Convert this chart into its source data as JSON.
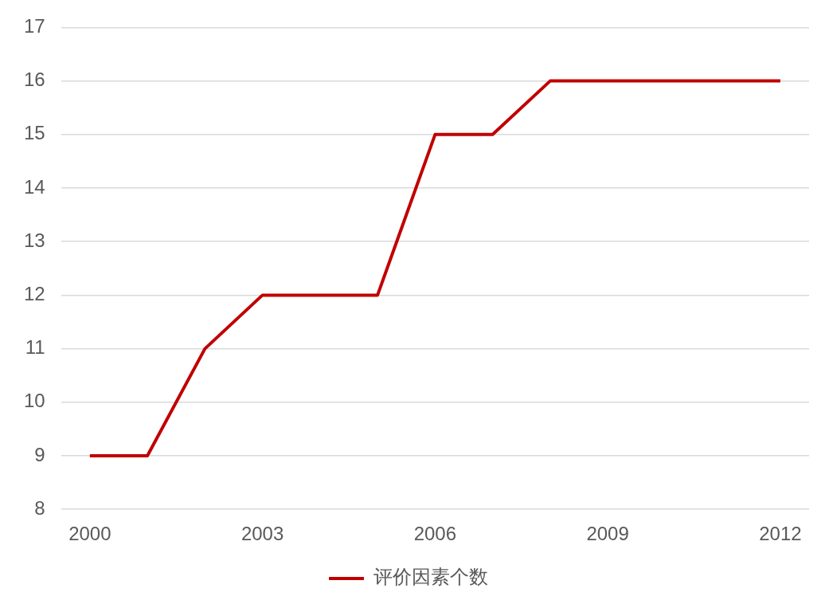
{
  "chart_data": {
    "type": "line",
    "categories": [
      "2000",
      null,
      null,
      "2003",
      null,
      null,
      "2006",
      null,
      null,
      "2009",
      null,
      null,
      "2012"
    ],
    "series": [
      {
        "name": "评价因素个数",
        "color": "#c00000",
        "values": [
          9,
          9,
          11,
          12,
          12,
          12,
          15,
          15,
          16,
          16,
          16,
          16,
          16
        ]
      }
    ],
    "ylim": [
      8,
      17
    ],
    "yticks": [
      8,
      9,
      10,
      11,
      12,
      13,
      14,
      15,
      16,
      17
    ],
    "grid": "y",
    "legend": "bottom",
    "marker": "none",
    "line_style": "solid"
  }
}
